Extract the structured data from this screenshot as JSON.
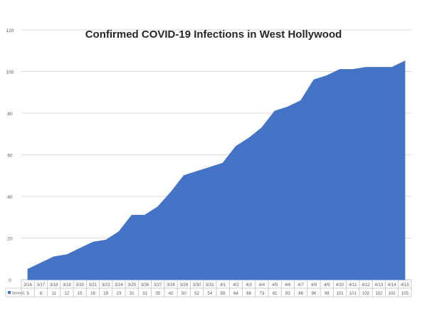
{
  "chart_data": {
    "type": "area",
    "title": "Confirmed COVID-19 Infections in West Hollywood",
    "ylim": [
      0,
      120
    ],
    "yticks": [
      0,
      20,
      40,
      60,
      80,
      100,
      120
    ],
    "grid": true,
    "legend": "data-table",
    "categories": [
      "3/16",
      "3/17",
      "3/18",
      "3/19",
      "3/20",
      "3/21",
      "3/23",
      "3/24",
      "3/25",
      "3/26",
      "3/27",
      "3/28",
      "3/29",
      "3/30",
      "3/31",
      "4/1",
      "4/2",
      "4/3",
      "4/4",
      "4/5",
      "4/6",
      "4/7",
      "4/8",
      "4/9",
      "4/10",
      "4/11",
      "4/12",
      "4/13",
      "4/14",
      "4/15"
    ],
    "series": [
      {
        "name": "Series1",
        "values": [
          5,
          8,
          11,
          12,
          15,
          18,
          19,
          23,
          31,
          31,
          35,
          42,
          50,
          52,
          54,
          56,
          64,
          68,
          73,
          81,
          83,
          86,
          96,
          98,
          101,
          101,
          102,
          102,
          102,
          105
        ]
      }
    ],
    "colors": {
      "fill": "#4472C4",
      "grid": "#d9d9d9",
      "axis": "#bfbfbf",
      "text": "#595959",
      "title": "#262626"
    }
  }
}
